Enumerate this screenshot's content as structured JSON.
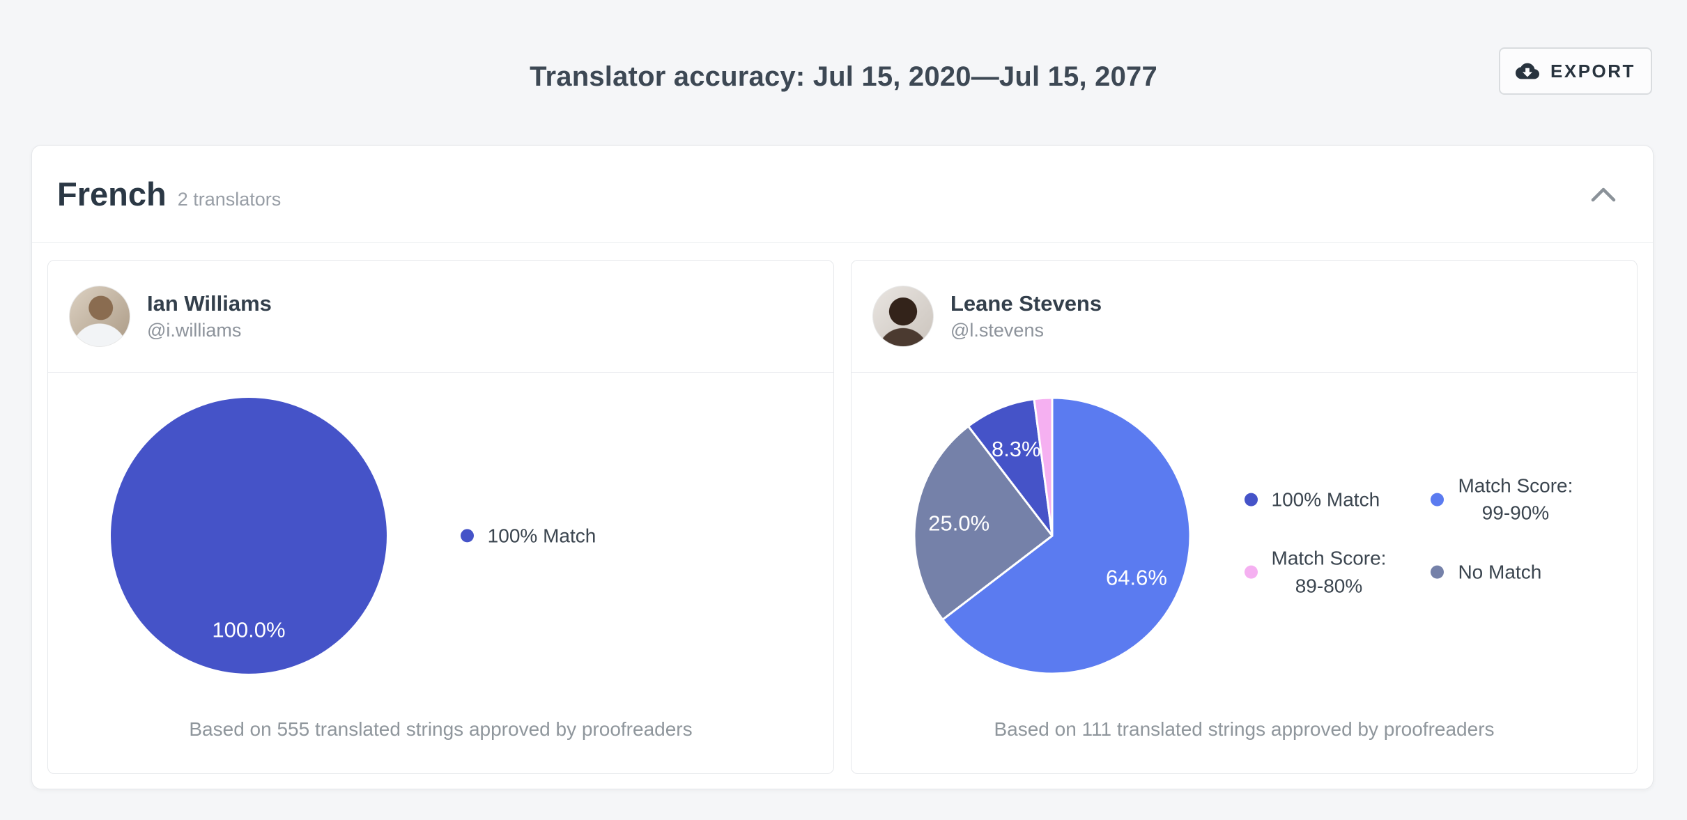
{
  "page": {
    "title": "Translator accuracy: Jul 15, 2020—Jul 15, 2077",
    "export_label": "EXPORT"
  },
  "group": {
    "language": "French",
    "translators_count_label": "2 translators"
  },
  "colors": {
    "match_100": "#4553c8",
    "match_99_90": "#5b7bf0",
    "match_89_80": "#f5b0f1",
    "no_match": "#7581a9",
    "page_background": "#f5f6f8",
    "card_background": "#ffffff"
  },
  "translators": [
    {
      "name": "Ian Williams",
      "handle": "@i.williams",
      "footer": "Based on 555 translated strings approved by proofreaders"
    },
    {
      "name": "Leane Stevens",
      "handle": "@l.stevens",
      "footer": "Based on 111 translated strings approved by proofreaders"
    }
  ],
  "chart_data": [
    {
      "type": "pie",
      "title": "Ian Williams translation accuracy",
      "slices": [
        {
          "label": "100% Match",
          "value": 100.0,
          "display": "100.0%",
          "color": "#4553c8"
        }
      ],
      "legend": [
        {
          "lines": [
            "100% Match"
          ],
          "color": "#4553c8"
        }
      ],
      "legend_position": "right"
    },
    {
      "type": "pie",
      "title": "Leane Stevens translation accuracy",
      "slices": [
        {
          "label": "Match Score: 99-90%",
          "value": 64.6,
          "display": "64.6%",
          "color": "#5b7bf0"
        },
        {
          "label": "No Match",
          "value": 25.0,
          "display": "25.0%",
          "color": "#7581a9"
        },
        {
          "label": "100% Match",
          "value": 8.3,
          "display": "8.3%",
          "color": "#4553c8"
        },
        {
          "label": "Match Score: 89-80%",
          "value": 2.1,
          "display": "",
          "color": "#f5b0f1"
        }
      ],
      "legend": [
        {
          "lines": [
            "100% Match"
          ],
          "color": "#4553c8"
        },
        {
          "lines": [
            "Match Score:",
            "99-90%"
          ],
          "color": "#5b7bf0"
        },
        {
          "lines": [
            "Match Score:",
            "89-80%"
          ],
          "color": "#f5b0f1"
        },
        {
          "lines": [
            "No Match"
          ],
          "color": "#7581a9"
        }
      ],
      "legend_position": "right-grid"
    }
  ]
}
